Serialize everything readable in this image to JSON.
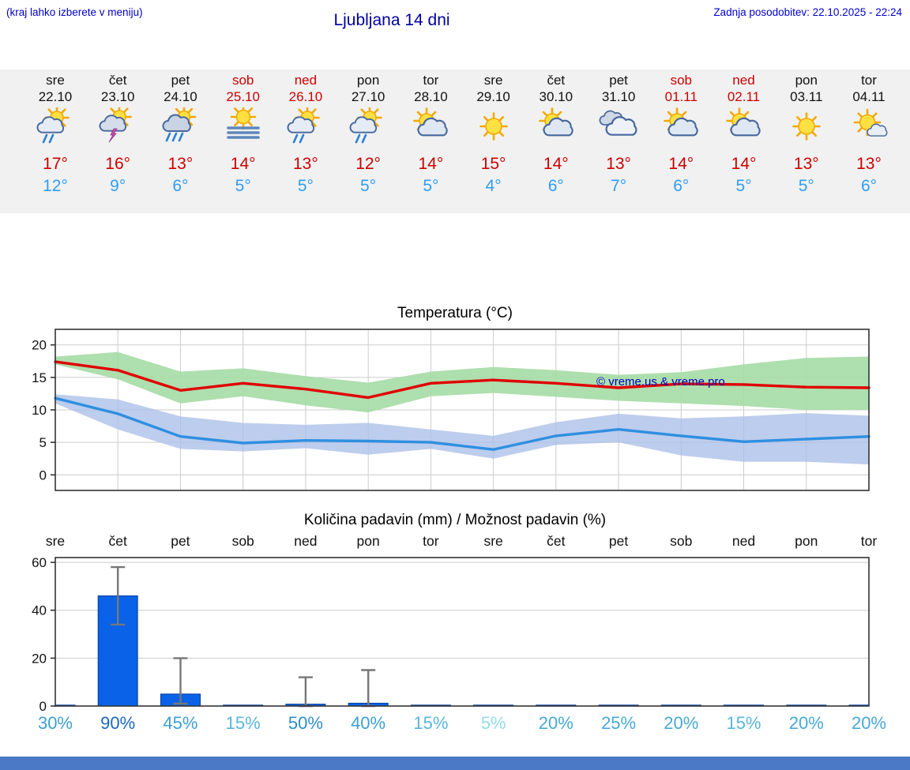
{
  "header": {
    "menu_note": "(kraj lahko izberete v meniju)",
    "title": "Ljubljana 14 dni",
    "last_update": "Zadnja posodobitev: 22.10.2025 - 22:24"
  },
  "watermark": "© vreme.us & vreme.pro",
  "forecast_days": [
    {
      "day": "sre",
      "date": "22.10",
      "weekend": false,
      "icon": "sun-cloud-rain",
      "high": "17°",
      "low": "12°"
    },
    {
      "day": "čet",
      "date": "23.10",
      "weekend": false,
      "icon": "sun-cloud-thunder",
      "high": "16°",
      "low": "9°"
    },
    {
      "day": "pet",
      "date": "24.10",
      "weekend": false,
      "icon": "sun-cloud-heavy-rain",
      "high": "13°",
      "low": "6°"
    },
    {
      "day": "sob",
      "date": "25.10",
      "weekend": true,
      "icon": "sun-fog",
      "high": "14°",
      "low": "5°"
    },
    {
      "day": "ned",
      "date": "26.10",
      "weekend": true,
      "icon": "sun-cloud-rain",
      "high": "13°",
      "low": "5°"
    },
    {
      "day": "pon",
      "date": "27.10",
      "weekend": false,
      "icon": "sun-cloud-rain",
      "high": "12°",
      "low": "5°"
    },
    {
      "day": "tor",
      "date": "28.10",
      "weekend": false,
      "icon": "sun-cloud",
      "high": "14°",
      "low": "5°"
    },
    {
      "day": "sre",
      "date": "29.10",
      "weekend": false,
      "icon": "sunny",
      "high": "15°",
      "low": "4°"
    },
    {
      "day": "čet",
      "date": "30.10",
      "weekend": false,
      "icon": "sun-cloud",
      "high": "14°",
      "low": "6°"
    },
    {
      "day": "pet",
      "date": "31.10",
      "weekend": false,
      "icon": "cloudy",
      "high": "13°",
      "low": "7°"
    },
    {
      "day": "sob",
      "date": "01.11",
      "weekend": true,
      "icon": "sun-cloud",
      "high": "14°",
      "low": "6°"
    },
    {
      "day": "ned",
      "date": "02.11",
      "weekend": true,
      "icon": "sun-cloud",
      "high": "14°",
      "low": "5°"
    },
    {
      "day": "pon",
      "date": "03.11",
      "weekend": false,
      "icon": "sunny",
      "high": "13°",
      "low": "5°"
    },
    {
      "day": "tor",
      "date": "04.11",
      "weekend": false,
      "icon": "sun-small-cloud",
      "high": "13°",
      "low": "6°"
    }
  ],
  "chart_data": [
    {
      "type": "line",
      "title": "Temperatura (°C)",
      "categories": [
        "22.10",
        "23.10",
        "24.10",
        "25.10",
        "26.10",
        "27.10",
        "28.10",
        "29.10",
        "30.10",
        "31.10",
        "01.11",
        "02.11",
        "03.11",
        "04.11"
      ],
      "ylim": [
        -2.4,
        22.4
      ],
      "yticks": [
        0,
        5,
        10,
        15,
        20
      ],
      "grid": true,
      "legend": "none",
      "series": [
        {
          "name": "T max razpon",
          "type": "band",
          "color": "#a5dba5",
          "upper": [
            18.2,
            18.9,
            15.9,
            16.4,
            15.2,
            14.2,
            15.9,
            16.6,
            16.1,
            15.4,
            15.8,
            17.0,
            18.0,
            18.2
          ],
          "lower": [
            17.0,
            14.7,
            11.0,
            12.1,
            10.7,
            9.6,
            12.1,
            12.6,
            12.0,
            11.4,
            11.0,
            10.6,
            10.0,
            10.0
          ]
        },
        {
          "name": "T min razpon",
          "type": "band",
          "color": "#aabfe8",
          "upper": [
            12.4,
            11.6,
            9.0,
            8.0,
            7.7,
            8.0,
            7.0,
            6.0,
            8.1,
            9.4,
            8.7,
            9.0,
            9.5,
            9.1
          ],
          "lower": [
            11.0,
            7.0,
            4.0,
            3.6,
            4.1,
            3.1,
            4.0,
            2.5,
            4.6,
            5.0,
            3.0,
            2.0,
            2.0,
            1.6
          ]
        },
        {
          "name": "T max",
          "type": "line",
          "color": "#e00000",
          "values": [
            17.4,
            16.1,
            13.0,
            14.1,
            13.2,
            11.9,
            14.1,
            14.6,
            14.1,
            13.4,
            14.0,
            13.9,
            13.5,
            13.4
          ]
        },
        {
          "name": "T min",
          "type": "line",
          "color": "#2f8fe0",
          "values": [
            11.8,
            9.4,
            5.9,
            4.9,
            5.3,
            5.2,
            5.0,
            3.9,
            6.0,
            7.0,
            6.0,
            5.1,
            5.5,
            5.9
          ]
        }
      ]
    },
    {
      "type": "bar",
      "title": "Količina padavin (mm) / Možnost padavin (%)",
      "categories": [
        "sre",
        "čet",
        "pet",
        "sob",
        "ned",
        "pon",
        "tor",
        "sre",
        "čet",
        "pet",
        "sob",
        "ned",
        "pon",
        "tor"
      ],
      "values": [
        0.3,
        46,
        5,
        0.1,
        0.8,
        1.2,
        0.1,
        0.1,
        0.1,
        0.1,
        0.1,
        0.2,
        0.1,
        0.1
      ],
      "error_low": [
        null,
        34,
        1,
        null,
        0,
        0,
        null,
        null,
        null,
        null,
        null,
        null,
        null,
        null
      ],
      "error_high": [
        null,
        58,
        20,
        null,
        12,
        15,
        null,
        null,
        null,
        null,
        null,
        null,
        null,
        null
      ],
      "bar_color": "#0a62e8",
      "ylim": [
        0,
        62
      ],
      "yticks": [
        0,
        20,
        40,
        60
      ],
      "probabilities": [
        {
          "label": "30%",
          "color": "#3d9fd1"
        },
        {
          "label": "90%",
          "color": "#1a66c4"
        },
        {
          "label": "45%",
          "color": "#3d9fd1"
        },
        {
          "label": "15%",
          "color": "#59b6dc"
        },
        {
          "label": "50%",
          "color": "#2f8cc9"
        },
        {
          "label": "40%",
          "color": "#3d9fd1"
        },
        {
          "label": "15%",
          "color": "#59b6dc"
        },
        {
          "label": "5%",
          "color": "#93dde6"
        },
        {
          "label": "20%",
          "color": "#47a9d6"
        },
        {
          "label": "25%",
          "color": "#47a9d6"
        },
        {
          "label": "20%",
          "color": "#47a9d6"
        },
        {
          "label": "15%",
          "color": "#59b6dc"
        },
        {
          "label": "20%",
          "color": "#47a9d6"
        },
        {
          "label": "20%",
          "color": "#47a9d6"
        }
      ]
    }
  ],
  "colors": {
    "title": "#0000a0",
    "link": "#0000cc",
    "high_temp": "#cc0000",
    "low_temp": "#2e9df5",
    "weekend": "#cc0000",
    "strip_bg": "#f1f1f1",
    "footer_bar": "#4b79c6",
    "grid": "#cccccc",
    "axis": "#333333",
    "watermark": "#0000bb"
  }
}
